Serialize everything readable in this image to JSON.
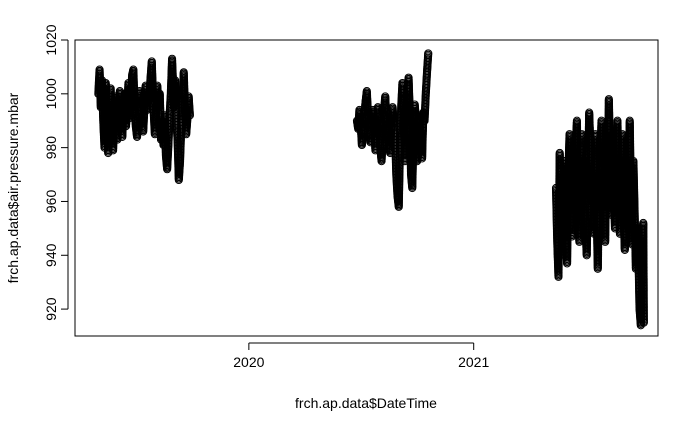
{
  "chart_data": {
    "type": "scatter",
    "title": "",
    "xlabel": "frch.ap.data$DateTime",
    "ylabel": "frch.ap.data$air.pressure.mbar",
    "xlim": [
      "2019-03-24",
      "2021-10-28"
    ],
    "ylim": [
      910,
      1020
    ],
    "x_ticks": [
      {
        "value": "2020-01-01",
        "label": "2020"
      },
      {
        "value": "2021-01-01",
        "label": "2021"
      }
    ],
    "y_ticks": [
      920,
      940,
      960,
      980,
      1000,
      1020
    ],
    "grid": false,
    "legend": "none",
    "marker": "open-circle",
    "color": "#000000",
    "series": [
      {
        "points": [
          [
            "2019-05-01",
            1000
          ],
          [
            "2019-05-03",
            1009
          ],
          [
            "2019-05-05",
            995
          ],
          [
            "2019-05-07",
            1005
          ],
          [
            "2019-05-09",
            990
          ],
          [
            "2019-05-11",
            980
          ],
          [
            "2019-05-13",
            1004
          ],
          [
            "2019-05-15",
            992
          ],
          [
            "2019-05-17",
            978
          ],
          [
            "2019-05-19",
            988
          ],
          [
            "2019-05-21",
            1002
          ],
          [
            "2019-05-23",
            986
          ],
          [
            "2019-05-25",
            979
          ],
          [
            "2019-05-27",
            995
          ],
          [
            "2019-05-29",
            999
          ],
          [
            "2019-06-01",
            983
          ],
          [
            "2019-06-03",
            992
          ],
          [
            "2019-06-05",
            1001
          ],
          [
            "2019-06-07",
            990
          ],
          [
            "2019-06-09",
            984
          ],
          [
            "2019-06-11",
            996
          ],
          [
            "2019-06-13",
            1000
          ],
          [
            "2019-06-15",
            988
          ],
          [
            "2019-06-17",
            994
          ],
          [
            "2019-06-19",
            1004
          ],
          [
            "2019-06-21",
            991
          ],
          [
            "2019-06-23",
            996
          ],
          [
            "2019-06-25",
            1007
          ],
          [
            "2019-06-27",
            1009
          ],
          [
            "2019-06-29",
            995
          ],
          [
            "2019-07-01",
            988
          ],
          [
            "2019-07-03",
            984
          ],
          [
            "2019-07-05",
            993
          ],
          [
            "2019-07-07",
            1001
          ],
          [
            "2019-07-09",
            996
          ],
          [
            "2019-07-11",
            990
          ],
          [
            "2019-07-13",
            986
          ],
          [
            "2019-07-15",
            995
          ],
          [
            "2019-07-17",
            1003
          ],
          [
            "2019-07-19",
            994
          ],
          [
            "2019-07-21",
            1000
          ],
          [
            "2019-07-23",
            998
          ],
          [
            "2019-07-25",
            1006
          ],
          [
            "2019-07-27",
            1012
          ],
          [
            "2019-07-29",
            998
          ],
          [
            "2019-08-01",
            985
          ],
          [
            "2019-08-03",
            993
          ],
          [
            "2019-08-05",
            1003
          ],
          [
            "2019-08-07",
            995
          ],
          [
            "2019-08-09",
            1000
          ],
          [
            "2019-08-11",
            983
          ],
          [
            "2019-08-13",
            990
          ],
          [
            "2019-08-15",
            981
          ],
          [
            "2019-08-17",
            992
          ],
          [
            "2019-08-19",
            977
          ],
          [
            "2019-08-21",
            972
          ],
          [
            "2019-08-23",
            981
          ],
          [
            "2019-08-25",
            992
          ],
          [
            "2019-08-27",
            1000
          ],
          [
            "2019-08-29",
            1013
          ],
          [
            "2019-09-01",
            995
          ],
          [
            "2019-09-03",
            1005
          ],
          [
            "2019-09-05",
            990
          ],
          [
            "2019-09-07",
            983
          ],
          [
            "2019-09-09",
            968
          ],
          [
            "2019-09-11",
            975
          ],
          [
            "2019-09-13",
            988
          ],
          [
            "2019-09-15",
            996
          ],
          [
            "2019-09-17",
            1008
          ],
          [
            "2019-09-19",
            994
          ],
          [
            "2019-09-21",
            985
          ],
          [
            "2019-09-23",
            991
          ],
          [
            "2019-09-25",
            999
          ],
          [
            "2019-09-27",
            992
          ],
          [
            "2020-06-25",
            990
          ],
          [
            "2020-06-27",
            987
          ],
          [
            "2020-06-29",
            994
          ],
          [
            "2020-07-01",
            989
          ],
          [
            "2020-07-03",
            981
          ],
          [
            "2020-07-05",
            985
          ],
          [
            "2020-07-07",
            992
          ],
          [
            "2020-07-09",
            997
          ],
          [
            "2020-07-11",
            1001
          ],
          [
            "2020-07-13",
            992
          ],
          [
            "2020-07-15",
            986
          ],
          [
            "2020-07-17",
            982
          ],
          [
            "2020-07-19",
            990
          ],
          [
            "2020-07-21",
            994
          ],
          [
            "2020-07-23",
            988
          ],
          [
            "2020-07-25",
            979
          ],
          [
            "2020-07-27",
            986
          ],
          [
            "2020-07-29",
            995
          ],
          [
            "2020-07-31",
            992
          ],
          [
            "2020-08-02",
            980
          ],
          [
            "2020-08-04",
            975
          ],
          [
            "2020-08-06",
            984
          ],
          [
            "2020-08-08",
            993
          ],
          [
            "2020-08-10",
            999
          ],
          [
            "2020-08-12",
            990
          ],
          [
            "2020-08-14",
            985
          ],
          [
            "2020-08-16",
            982
          ],
          [
            "2020-08-18",
            978
          ],
          [
            "2020-08-20",
            989
          ],
          [
            "2020-08-22",
            995
          ],
          [
            "2020-08-24",
            988
          ],
          [
            "2020-08-26",
            985
          ],
          [
            "2020-08-28",
            970
          ],
          [
            "2020-08-30",
            962
          ],
          [
            "2020-09-01",
            958
          ],
          [
            "2020-09-03",
            980
          ],
          [
            "2020-09-05",
            995
          ],
          [
            "2020-09-07",
            1004
          ],
          [
            "2020-09-09",
            990
          ],
          [
            "2020-09-11",
            975
          ],
          [
            "2020-09-13",
            985
          ],
          [
            "2020-09-15",
            998
          ],
          [
            "2020-09-17",
            1006
          ],
          [
            "2020-09-19",
            992
          ],
          [
            "2020-09-21",
            970
          ],
          [
            "2020-09-23",
            965
          ],
          [
            "2020-09-25",
            985
          ],
          [
            "2020-09-27",
            996
          ],
          [
            "2020-09-29",
            990
          ],
          [
            "2020-10-01",
            975
          ],
          [
            "2020-10-03",
            978
          ],
          [
            "2020-10-05",
            988
          ],
          [
            "2020-10-07",
            986
          ],
          [
            "2020-10-09",
            976
          ],
          [
            "2020-10-11",
            993
          ],
          [
            "2020-10-13",
            990
          ],
          [
            "2020-10-15",
            1000
          ],
          [
            "2020-10-17",
            1008
          ],
          [
            "2020-10-19",
            1015
          ],
          [
            "2021-05-15",
            965
          ],
          [
            "2021-05-17",
            945
          ],
          [
            "2021-05-19",
            932
          ],
          [
            "2021-05-21",
            978
          ],
          [
            "2021-05-23",
            955
          ],
          [
            "2021-05-25",
            940
          ],
          [
            "2021-05-27",
            968
          ],
          [
            "2021-05-29",
            975
          ],
          [
            "2021-05-31",
            950
          ],
          [
            "2021-06-02",
            937
          ],
          [
            "2021-06-04",
            970
          ],
          [
            "2021-06-06",
            985
          ],
          [
            "2021-06-08",
            958
          ],
          [
            "2021-06-10",
            947
          ],
          [
            "2021-06-12",
            975
          ],
          [
            "2021-06-14",
            960
          ],
          [
            "2021-06-16",
            980
          ],
          [
            "2021-06-18",
            990
          ],
          [
            "2021-06-20",
            955
          ],
          [
            "2021-06-22",
            945
          ],
          [
            "2021-06-24",
            972
          ],
          [
            "2021-06-26",
            985
          ],
          [
            "2021-06-28",
            962
          ],
          [
            "2021-06-30",
            975
          ],
          [
            "2021-07-02",
            950
          ],
          [
            "2021-07-04",
            940
          ],
          [
            "2021-07-06",
            968
          ],
          [
            "2021-07-08",
            993
          ],
          [
            "2021-07-10",
            980
          ],
          [
            "2021-07-12",
            960
          ],
          [
            "2021-07-14",
            970
          ],
          [
            "2021-07-16",
            948
          ],
          [
            "2021-07-18",
            985
          ],
          [
            "2021-07-20",
            958
          ],
          [
            "2021-07-22",
            935
          ],
          [
            "2021-07-24",
            965
          ],
          [
            "2021-07-26",
            975
          ],
          [
            "2021-07-28",
            990
          ],
          [
            "2021-07-30",
            958
          ],
          [
            "2021-08-01",
            970
          ],
          [
            "2021-08-03",
            945
          ],
          [
            "2021-08-05",
            980
          ],
          [
            "2021-08-07",
            960
          ],
          [
            "2021-08-09",
            998
          ],
          [
            "2021-08-11",
            975
          ],
          [
            "2021-08-13",
            955
          ],
          [
            "2021-08-15",
            985
          ],
          [
            "2021-08-17",
            965
          ],
          [
            "2021-08-19",
            950
          ],
          [
            "2021-08-21",
            975
          ],
          [
            "2021-08-23",
            990
          ],
          [
            "2021-08-25",
            965
          ],
          [
            "2021-08-27",
            948
          ],
          [
            "2021-08-29",
            970
          ],
          [
            "2021-08-31",
            985
          ],
          [
            "2021-09-02",
            955
          ],
          [
            "2021-09-04",
            942
          ],
          [
            "2021-09-06",
            975
          ],
          [
            "2021-09-08",
            965
          ],
          [
            "2021-09-10",
            950
          ],
          [
            "2021-09-12",
            990
          ],
          [
            "2021-09-14",
            960
          ],
          [
            "2021-09-16",
            944
          ],
          [
            "2021-09-18",
            975
          ],
          [
            "2021-09-20",
            955
          ],
          [
            "2021-09-22",
            935
          ],
          [
            "2021-09-24",
            950
          ],
          [
            "2021-09-26",
            942
          ],
          [
            "2021-09-28",
            920
          ],
          [
            "2021-09-30",
            914
          ],
          [
            "2021-10-02",
            938
          ],
          [
            "2021-10-04",
            952
          ],
          [
            "2021-10-05",
            915
          ]
        ]
      }
    ]
  }
}
